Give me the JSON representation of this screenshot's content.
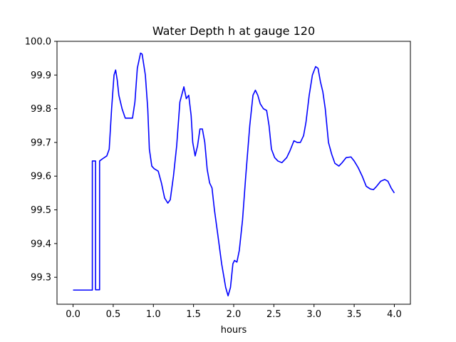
{
  "chart_data": {
    "type": "line",
    "title": "Water Depth h at gauge 120",
    "xlabel": "hours",
    "ylabel": "",
    "xlim": [
      -0.2,
      4.2
    ],
    "ylim": [
      99.22,
      100.0
    ],
    "xticks": [
      0.0,
      0.5,
      1.0,
      1.5,
      2.0,
      2.5,
      3.0,
      3.5,
      4.0
    ],
    "xtick_labels": [
      "0.0",
      "0.5",
      "1.0",
      "1.5",
      "2.0",
      "2.5",
      "3.0",
      "3.5",
      "4.0"
    ],
    "yticks": [
      99.3,
      99.4,
      99.5,
      99.6,
      99.7,
      99.8,
      99.9,
      100.0
    ],
    "ytick_labels": [
      "99.3",
      "99.4",
      "99.5",
      "99.6",
      "99.7",
      "99.8",
      "99.9",
      "100.0"
    ],
    "grid": false,
    "legend": "none",
    "series": [
      {
        "color": "#0000ff",
        "points": [
          [
            0.0,
            99.262
          ],
          [
            0.24,
            99.262
          ],
          [
            0.24,
            99.645
          ],
          [
            0.28,
            99.645
          ],
          [
            0.28,
            99.263
          ],
          [
            0.33,
            99.263
          ],
          [
            0.33,
            99.645
          ],
          [
            0.37,
            99.652
          ],
          [
            0.42,
            99.66
          ],
          [
            0.45,
            99.68
          ],
          [
            0.48,
            99.8
          ],
          [
            0.51,
            99.9
          ],
          [
            0.53,
            99.915
          ],
          [
            0.55,
            99.885
          ],
          [
            0.57,
            99.84
          ],
          [
            0.61,
            99.8
          ],
          [
            0.65,
            99.772
          ],
          [
            0.7,
            99.772
          ],
          [
            0.74,
            99.772
          ],
          [
            0.77,
            99.82
          ],
          [
            0.8,
            99.92
          ],
          [
            0.84,
            99.965
          ],
          [
            0.86,
            99.962
          ],
          [
            0.9,
            99.9
          ],
          [
            0.93,
            99.8
          ],
          [
            0.95,
            99.68
          ],
          [
            0.98,
            99.63
          ],
          [
            1.01,
            99.622
          ],
          [
            1.06,
            99.615
          ],
          [
            1.1,
            99.58
          ],
          [
            1.14,
            99.535
          ],
          [
            1.18,
            99.52
          ],
          [
            1.21,
            99.53
          ],
          [
            1.25,
            99.6
          ],
          [
            1.29,
            99.69
          ],
          [
            1.33,
            99.82
          ],
          [
            1.38,
            99.865
          ],
          [
            1.41,
            99.83
          ],
          [
            1.44,
            99.84
          ],
          [
            1.47,
            99.78
          ],
          [
            1.49,
            99.7
          ],
          [
            1.52,
            99.66
          ],
          [
            1.55,
            99.69
          ],
          [
            1.58,
            99.74
          ],
          [
            1.61,
            99.74
          ],
          [
            1.64,
            99.7
          ],
          [
            1.67,
            99.62
          ],
          [
            1.7,
            99.58
          ],
          [
            1.73,
            99.565
          ],
          [
            1.76,
            99.5
          ],
          [
            1.8,
            99.43
          ],
          [
            1.85,
            99.34
          ],
          [
            1.9,
            99.27
          ],
          [
            1.93,
            99.245
          ],
          [
            1.96,
            99.27
          ],
          [
            1.99,
            99.34
          ],
          [
            2.01,
            99.35
          ],
          [
            2.04,
            99.345
          ],
          [
            2.07,
            99.38
          ],
          [
            2.11,
            99.47
          ],
          [
            2.15,
            99.6
          ],
          [
            2.2,
            99.75
          ],
          [
            2.24,
            99.84
          ],
          [
            2.27,
            99.855
          ],
          [
            2.3,
            99.84
          ],
          [
            2.33,
            99.815
          ],
          [
            2.37,
            99.8
          ],
          [
            2.41,
            99.795
          ],
          [
            2.44,
            99.75
          ],
          [
            2.47,
            99.68
          ],
          [
            2.51,
            99.655
          ],
          [
            2.55,
            99.645
          ],
          [
            2.6,
            99.64
          ],
          [
            2.66,
            99.655
          ],
          [
            2.7,
            99.675
          ],
          [
            2.75,
            99.705
          ],
          [
            2.79,
            99.7
          ],
          [
            2.83,
            99.7
          ],
          [
            2.87,
            99.72
          ],
          [
            2.9,
            99.76
          ],
          [
            2.94,
            99.84
          ],
          [
            2.98,
            99.9
          ],
          [
            3.02,
            99.925
          ],
          [
            3.05,
            99.92
          ],
          [
            3.08,
            99.88
          ],
          [
            3.11,
            99.85
          ],
          [
            3.14,
            99.8
          ],
          [
            3.18,
            99.7
          ],
          [
            3.22,
            99.665
          ],
          [
            3.26,
            99.638
          ],
          [
            3.31,
            99.63
          ],
          [
            3.35,
            99.64
          ],
          [
            3.4,
            99.655
          ],
          [
            3.46,
            99.657
          ],
          [
            3.5,
            99.645
          ],
          [
            3.55,
            99.625
          ],
          [
            3.6,
            99.6
          ],
          [
            3.65,
            99.57
          ],
          [
            3.7,
            99.562
          ],
          [
            3.74,
            99.56
          ],
          [
            3.78,
            99.57
          ],
          [
            3.83,
            99.585
          ],
          [
            3.88,
            99.59
          ],
          [
            3.92,
            99.585
          ],
          [
            3.96,
            99.565
          ],
          [
            4.0,
            99.55
          ]
        ]
      }
    ]
  }
}
